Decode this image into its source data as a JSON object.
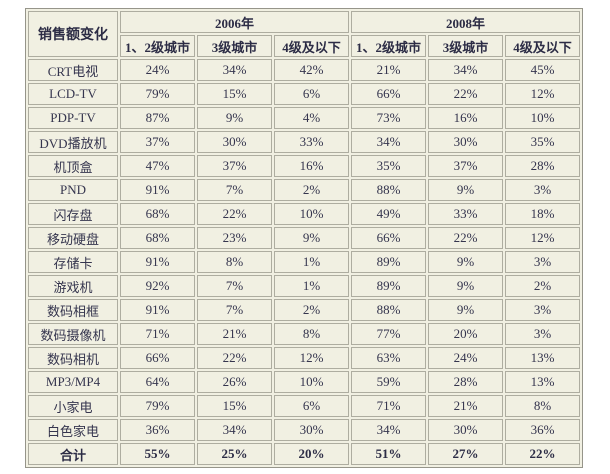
{
  "colors": {
    "page_background": "#ffffff",
    "table_background": "#f1f0e2",
    "cell_border": "#aeada0",
    "outer_border": "#96958a",
    "text": "#35354e"
  },
  "chart_data": {
    "type": "table",
    "title": "销售额变化",
    "corner_label": "销售额变化",
    "unit": "%",
    "year_groups": [
      {
        "label": "2006年",
        "subcolumns": [
          "1、2级城市",
          "3级城市",
          "4级及以下"
        ]
      },
      {
        "label": "2008年",
        "subcolumns": [
          "1、2级城市",
          "3级城市",
          "4级及以下"
        ]
      }
    ],
    "rows": [
      {
        "label": "CRT电视",
        "values": [
          24,
          34,
          42,
          21,
          34,
          45
        ]
      },
      {
        "label": "LCD-TV",
        "values": [
          79,
          15,
          6,
          66,
          22,
          12
        ]
      },
      {
        "label": "PDP-TV",
        "values": [
          87,
          9,
          4,
          73,
          16,
          10
        ]
      },
      {
        "label": "DVD播放机",
        "values": [
          37,
          30,
          33,
          34,
          30,
          35
        ]
      },
      {
        "label": "机顶盒",
        "values": [
          47,
          37,
          16,
          35,
          37,
          28
        ]
      },
      {
        "label": "PND",
        "values": [
          91,
          7,
          2,
          88,
          9,
          3
        ]
      },
      {
        "label": "闪存盘",
        "values": [
          68,
          22,
          10,
          49,
          33,
          18
        ]
      },
      {
        "label": "移动硬盘",
        "values": [
          68,
          23,
          9,
          66,
          22,
          12
        ]
      },
      {
        "label": "存储卡",
        "values": [
          91,
          8,
          1,
          89,
          9,
          3
        ]
      },
      {
        "label": "游戏机",
        "values": [
          92,
          7,
          1,
          89,
          9,
          2
        ]
      },
      {
        "label": "数码相框",
        "values": [
          91,
          7,
          2,
          88,
          9,
          3
        ]
      },
      {
        "label": "数码摄像机",
        "values": [
          71,
          21,
          8,
          77,
          20,
          3
        ]
      },
      {
        "label": "数码相机",
        "values": [
          66,
          22,
          12,
          63,
          24,
          13
        ]
      },
      {
        "label": "MP3/MP4",
        "values": [
          64,
          26,
          10,
          59,
          28,
          13
        ]
      },
      {
        "label": "小家电",
        "values": [
          79,
          15,
          6,
          71,
          21,
          8
        ]
      },
      {
        "label": "白色家电",
        "values": [
          36,
          34,
          30,
          34,
          30,
          36
        ]
      },
      {
        "label": "合计",
        "values": [
          55,
          25,
          20,
          51,
          27,
          22
        ],
        "is_total": true
      }
    ]
  }
}
